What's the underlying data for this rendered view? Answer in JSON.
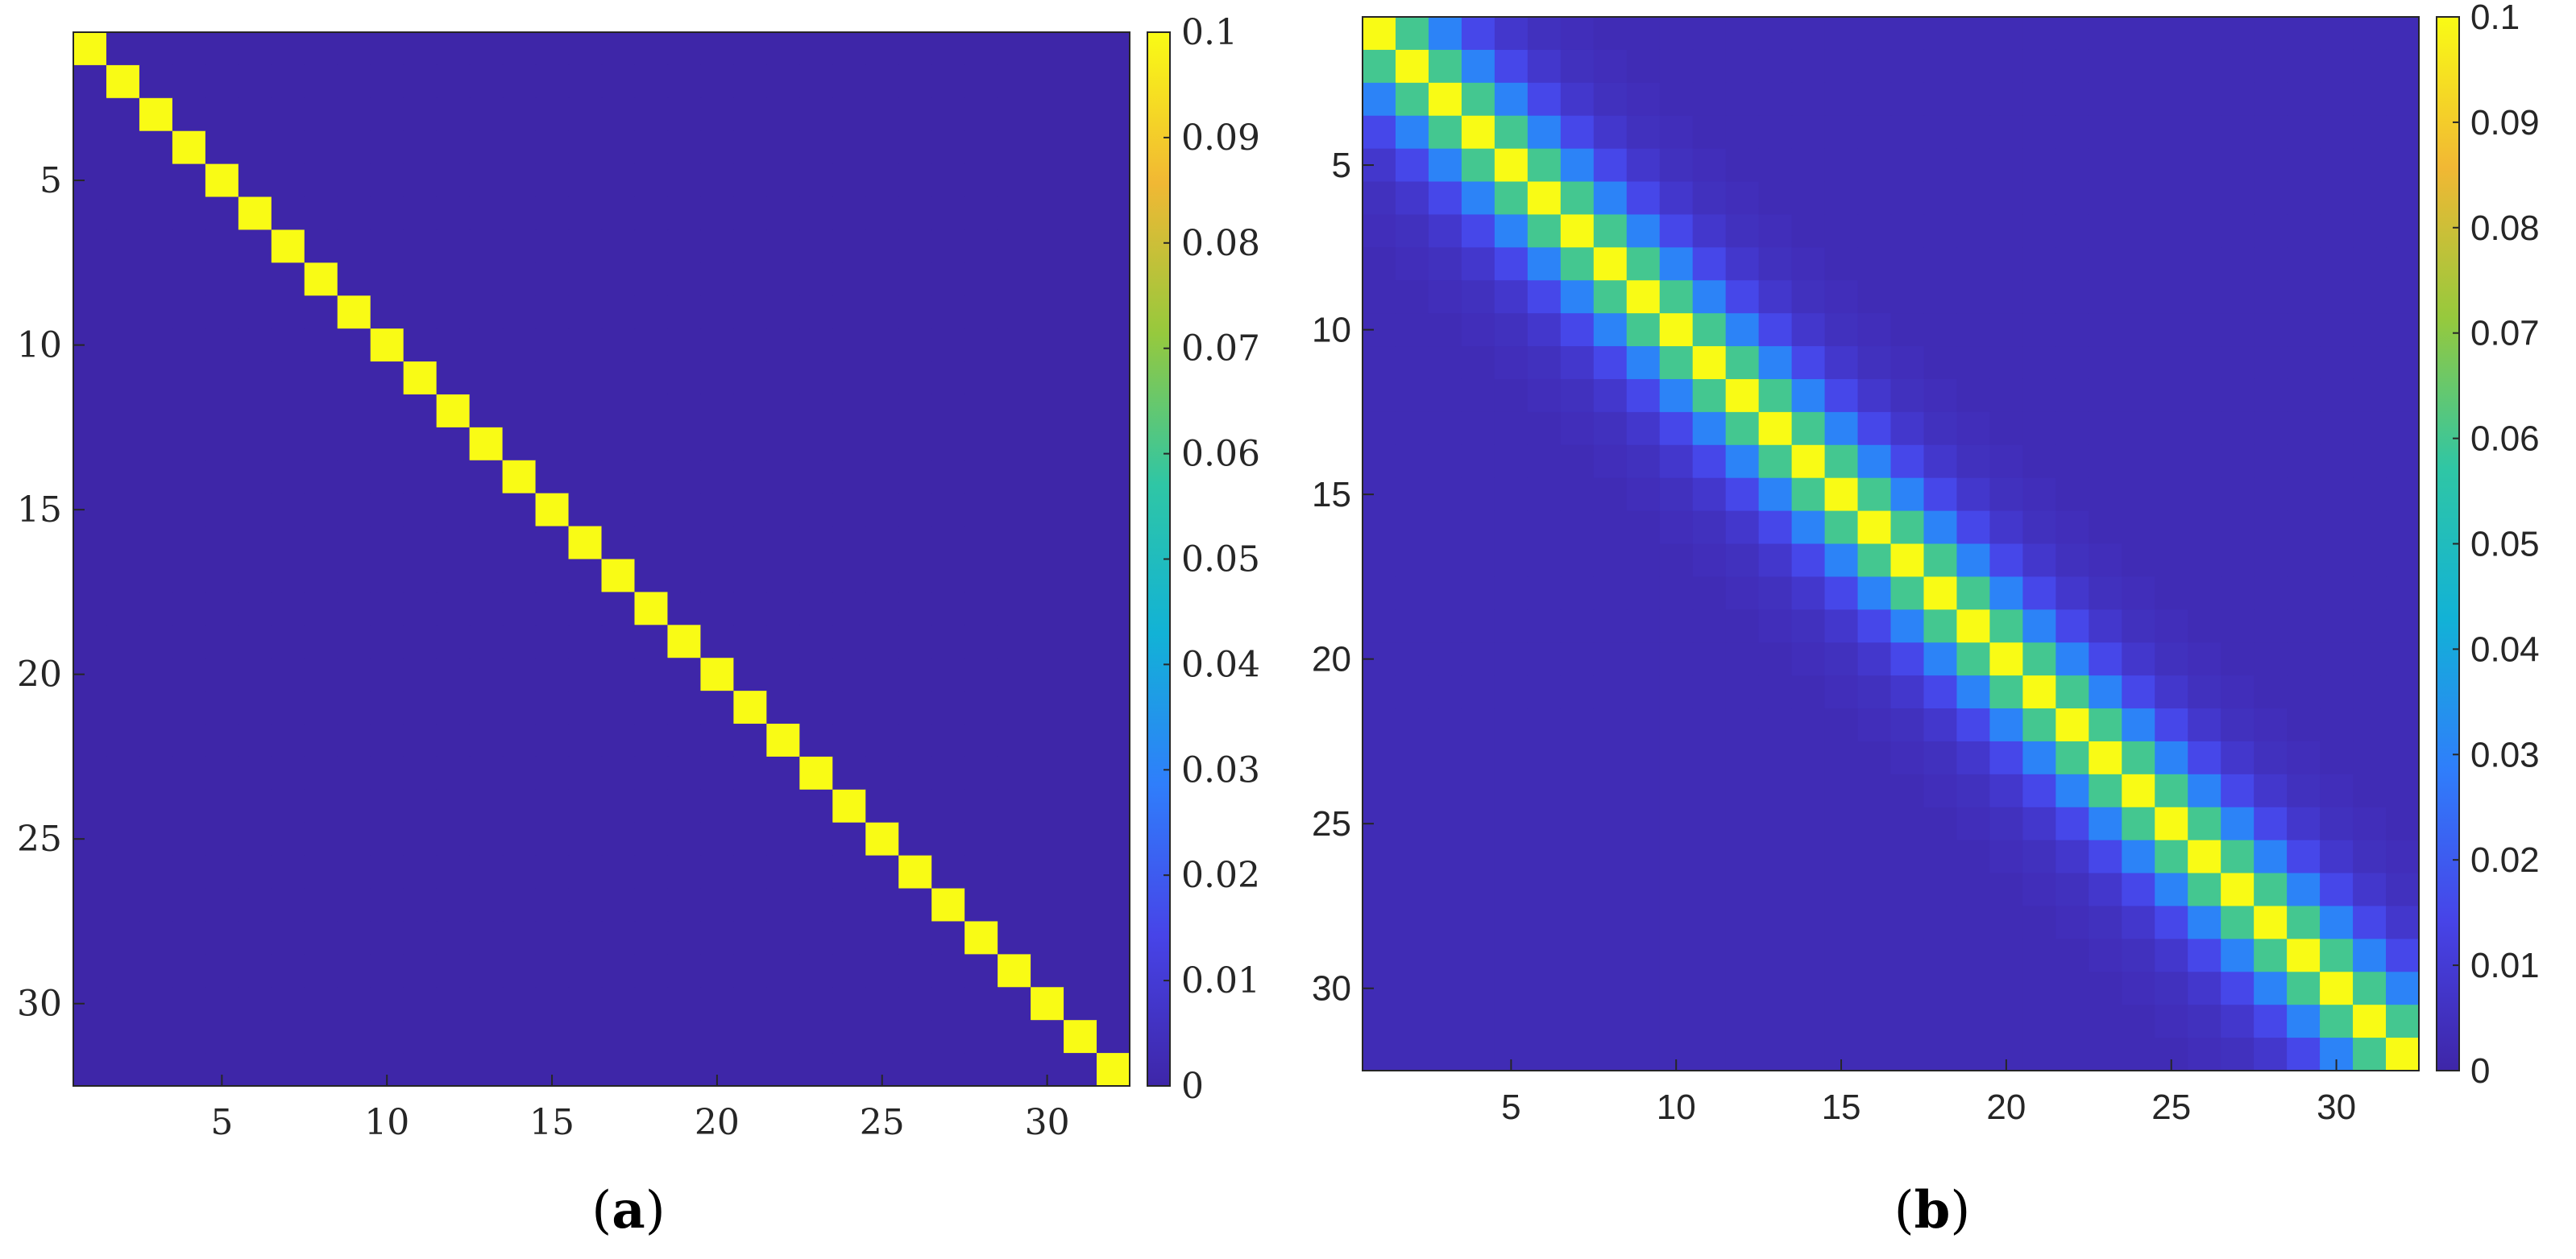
{
  "figure": {
    "panel_labels": [
      "(a)",
      "(b)"
    ]
  },
  "colors": {
    "colormap": [
      "#3e26a8",
      "#4744e8",
      "#2f7efb",
      "#12b2d6",
      "#2fc6a5",
      "#96c93d",
      "#f1b834",
      "#f9fb15"
    ]
  },
  "chart_data": [
    {
      "type": "heatmap",
      "panel": "(a)",
      "title": "",
      "xlabel": "",
      "ylabel": "",
      "rows": 32,
      "cols": 32,
      "pattern": "diagonal",
      "diagonal_value": 0.1,
      "off_diagonal_value": 0,
      "bandwidth_decay": [],
      "xlim": [
        0.5,
        32.5
      ],
      "ylim": [
        0.5,
        32.5
      ],
      "x_ticks": [
        5,
        10,
        15,
        20,
        25,
        30
      ],
      "y_ticks": [
        5,
        10,
        15,
        20,
        25,
        30
      ],
      "y_reversed": true,
      "tick_font": "serif",
      "colorbar": {
        "clim": [
          0,
          0.1
        ],
        "ticks": [
          0,
          0.01,
          0.02,
          0.03,
          0.04,
          0.05,
          0.06,
          0.07,
          0.08,
          0.09,
          0.1
        ],
        "tick_labels": [
          "0",
          "0.01",
          "0.02",
          "0.03",
          "0.04",
          "0.05",
          "0.06",
          "0.07",
          "0.08",
          "0.09",
          "0.1"
        ]
      }
    },
    {
      "type": "heatmap",
      "panel": "(b)",
      "title": "",
      "xlabel": "",
      "ylabel": "",
      "rows": 32,
      "cols": 32,
      "pattern": "banded",
      "diagonal_value": 0.1,
      "off_diagonal_value": 0.003,
      "bandwidth_decay": [
        0.1,
        0.06,
        0.03,
        0.015,
        0.008,
        0.005,
        0.004
      ],
      "xlim": [
        0.5,
        32.5
      ],
      "ylim": [
        0.5,
        32.5
      ],
      "x_ticks": [
        5,
        10,
        15,
        20,
        25,
        30
      ],
      "y_ticks": [
        5,
        10,
        15,
        20,
        25,
        30
      ],
      "y_reversed": true,
      "tick_font": "sans",
      "colorbar": {
        "clim": [
          0,
          0.1
        ],
        "ticks": [
          0,
          0.01,
          0.02,
          0.03,
          0.04,
          0.05,
          0.06,
          0.07,
          0.08,
          0.09,
          0.1
        ],
        "tick_labels": [
          "0",
          "0.01",
          "0.02",
          "0.03",
          "0.04",
          "0.05",
          "0.06",
          "0.07",
          "0.08",
          "0.09",
          "0.1"
        ]
      }
    }
  ]
}
